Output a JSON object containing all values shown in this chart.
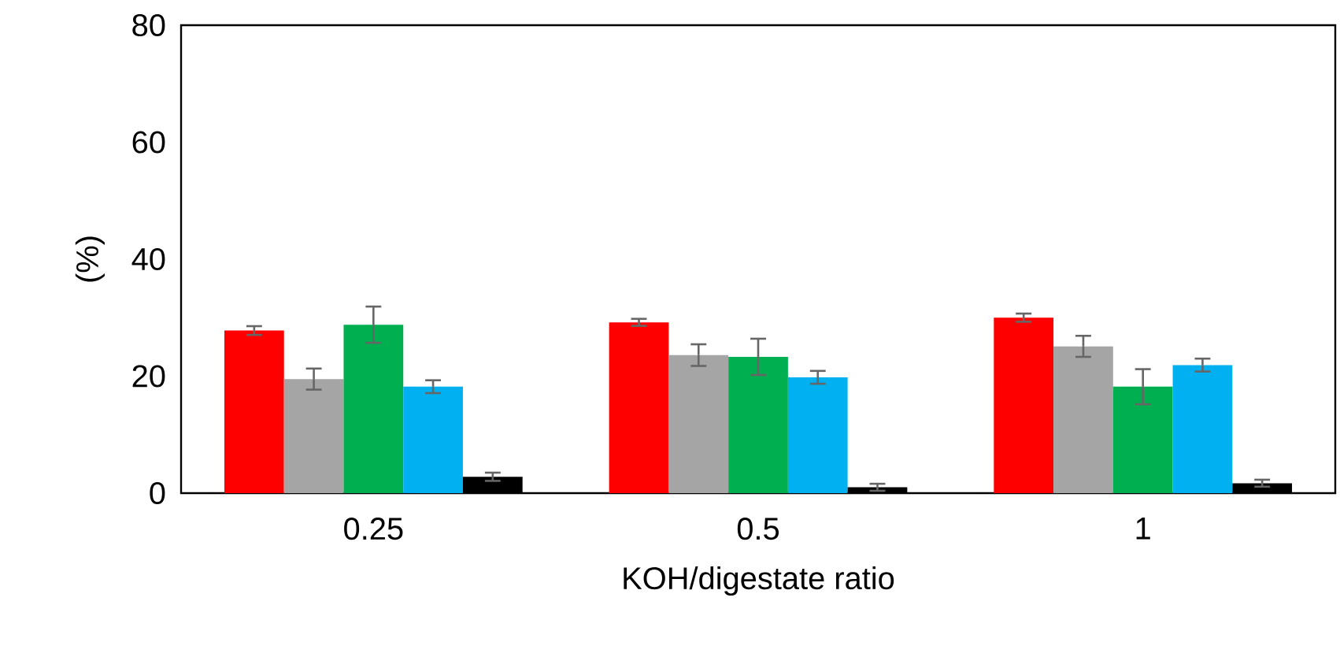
{
  "chart_data": {
    "type": "bar",
    "xlabel": "KOH/digestate ratio",
    "ylabel": "(%)",
    "categories": [
      "0.25",
      "0.5",
      "1"
    ],
    "ylim": [
      0,
      80
    ],
    "yticks": [
      0,
      20,
      40,
      60,
      80
    ],
    "grid": false,
    "series": [
      {
        "color": "#ff0000",
        "values": [
          27.8,
          29.2,
          30.0
        ],
        "errors": [
          0.75,
          0.6,
          0.7
        ]
      },
      {
        "color": "#a5a5a5",
        "values": [
          19.5,
          23.6,
          25.1
        ],
        "errors": [
          1.8,
          1.85,
          1.8
        ]
      },
      {
        "color": "#00b050",
        "values": [
          28.8,
          23.3,
          18.2
        ],
        "errors": [
          3.1,
          3.1,
          3.0
        ]
      },
      {
        "color": "#00b0f0",
        "values": [
          18.2,
          19.8,
          21.9
        ],
        "errors": [
          1.1,
          1.1,
          1.1
        ]
      },
      {
        "color": "#000000",
        "values": [
          2.8,
          1.0,
          1.7
        ],
        "errors": [
          0.7,
          0.6,
          0.6
        ]
      }
    ]
  }
}
